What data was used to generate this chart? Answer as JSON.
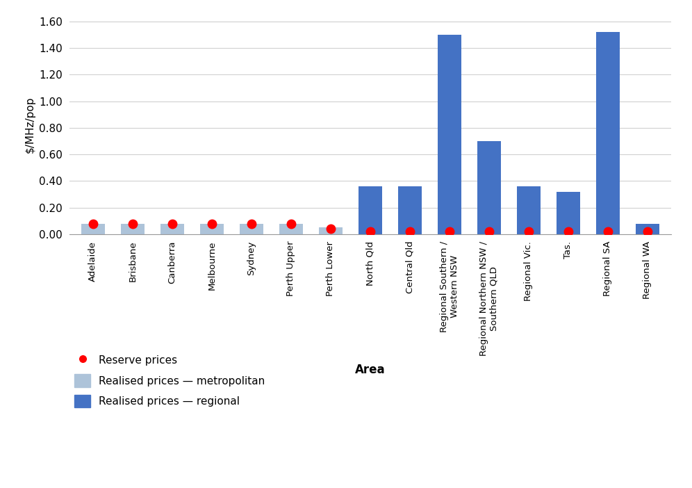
{
  "categories": [
    "Adelaide",
    "Brisbane",
    "Canberra",
    "Melbourne",
    "Sydney",
    "Perth Upper",
    "Perth Lower",
    "North Qld",
    "Central Qld",
    "Regional Southern /\nWestern NSW",
    "Regional Northern NSW /\nSouthern QLD",
    "Regional Vic.",
    "Tas.",
    "Regional SA",
    "Regional WA"
  ],
  "bar_values": [
    0.08,
    0.08,
    0.08,
    0.08,
    0.08,
    0.08,
    0.05,
    0.36,
    0.36,
    1.5,
    0.7,
    0.36,
    0.32,
    1.52,
    0.08
  ],
  "reserve_prices": [
    0.08,
    0.08,
    0.08,
    0.08,
    0.08,
    0.08,
    0.04,
    0.02,
    0.02,
    0.02,
    0.02,
    0.02,
    0.02,
    0.02,
    0.02
  ],
  "is_metropolitan": [
    true,
    true,
    true,
    true,
    true,
    true,
    true,
    false,
    false,
    false,
    false,
    false,
    false,
    false,
    false
  ],
  "metro_bar_color": "#adc3d9",
  "regional_bar_color": "#4472c4",
  "reserve_dot_color": "#ff0000",
  "ylabel": "$/MHz/pop",
  "xlabel": "Area",
  "ylim": [
    0.0,
    1.65
  ],
  "yticks": [
    0.0,
    0.2,
    0.4,
    0.6,
    0.8,
    1.0,
    1.2,
    1.4,
    1.6
  ],
  "legend_metro_label": "Realised prices — metropolitan",
  "legend_regional_label": "Realised prices — regional",
  "legend_reserve_label": "Reserve prices",
  "background_color": "#ffffff",
  "grid_color": "#d0d0d0"
}
